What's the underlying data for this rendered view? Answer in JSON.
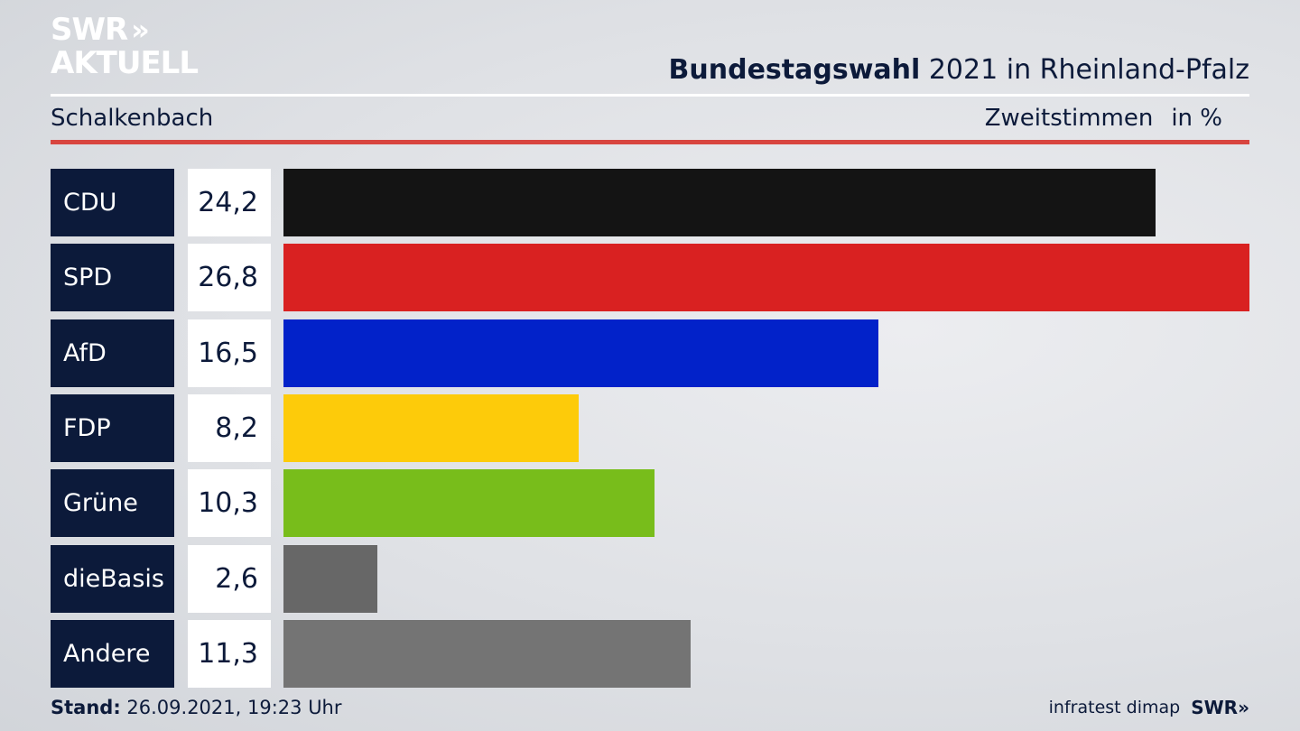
{
  "logo": {
    "line1": "SWR",
    "arrows": "»",
    "line2": "AKTUELL"
  },
  "header": {
    "title_strong": "Bundestagswahl",
    "title_rest": "2021 in Rheinland-Pfalz",
    "location": "Schalkenbach",
    "measure": "Zweitstimmen",
    "unit": "in %"
  },
  "colors": {
    "accent_red_rule": "#d8453f",
    "label_background": "#0c1a3a"
  },
  "chart_data": {
    "type": "bar",
    "orientation": "horizontal",
    "categories": [
      "CDU",
      "SPD",
      "AfD",
      "FDP",
      "Grüne",
      "dieBasis",
      "Andere"
    ],
    "values": [
      24.2,
      26.8,
      16.5,
      8.2,
      10.3,
      2.6,
      11.3
    ],
    "value_labels": [
      "24,2",
      "26,8",
      "16,5",
      "8,2",
      "10,3",
      "2,6",
      "11,3"
    ],
    "bar_colors": [
      "#141414",
      "#d92121",
      "#0222c9",
      "#fdcb0a",
      "#78bd1b",
      "#676767",
      "#747474"
    ],
    "xlim": [
      0,
      26.8
    ],
    "grid": false,
    "legend": "none"
  },
  "footer": {
    "stand_label": "Stand:",
    "stand_value": "26.09.2021, 19:23 Uhr",
    "source": "infratest dimap",
    "brand": "SWR»"
  }
}
